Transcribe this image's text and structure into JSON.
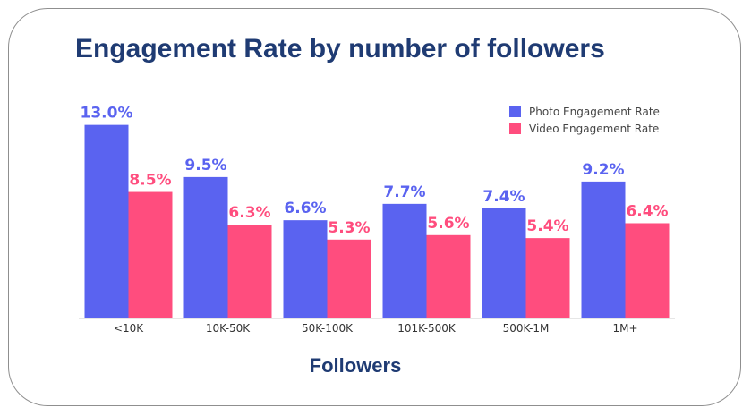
{
  "colors": {
    "photo": "#5a63f0",
    "video": "#ff4d7e",
    "title": "#1f3b73"
  },
  "chart_data": {
    "type": "bar",
    "title": "Engagement Rate by number of followers",
    "xlabel": "Followers",
    "ylabel": "",
    "ylim": [
      0,
      14
    ],
    "grid": false,
    "legend_position": "top-right",
    "categories": [
      "<10K",
      "10K-50K",
      "50K-100K",
      "101K-500K",
      "500K-1M",
      "1M+"
    ],
    "series": [
      {
        "name": "Photo Engagement Rate",
        "values": [
          13.0,
          9.5,
          6.6,
          7.7,
          7.4,
          9.2
        ],
        "labels": [
          "13.0%",
          "9.5%",
          "6.6%",
          "7.7%",
          "7.4%",
          "9.2%"
        ]
      },
      {
        "name": "Video Engagement Rate",
        "values": [
          8.5,
          6.3,
          5.3,
          5.6,
          5.4,
          6.4
        ],
        "labels": [
          "8.5%",
          "6.3%",
          "5.3%",
          "5.6%",
          "5.4%",
          "6.4%"
        ]
      }
    ]
  }
}
